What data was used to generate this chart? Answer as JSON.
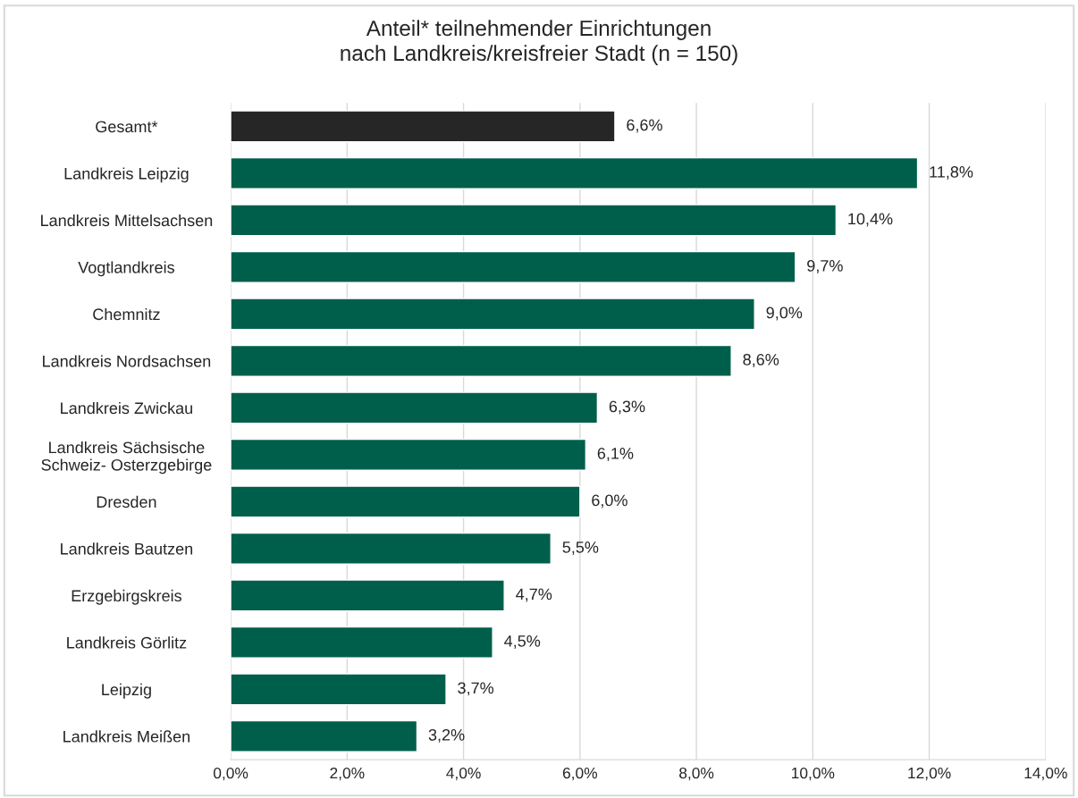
{
  "chart_data": {
    "type": "bar",
    "orientation": "horizontal",
    "title": "Anteil* teilnehmender Einrichtungen\nnach Landkreis/kreisfreier Stadt (n = 150)",
    "categories": [
      "Gesamt*",
      "Landkreis Leipzig",
      "Landkreis Mittelsachsen",
      "Vogtlandkreis",
      "Chemnitz",
      "Landkreis Nordsachsen",
      "Landkreis Zwickau",
      "Landkreis Sächsische\nSchweiz- Osterzgebirge",
      "Dresden",
      "Landkreis Bautzen",
      "Erzgebirgskreis",
      "Landkreis Görlitz",
      "Leipzig",
      "Landkreis Meißen"
    ],
    "values": [
      6.6,
      11.8,
      10.4,
      9.7,
      9.0,
      8.6,
      6.3,
      6.1,
      6.0,
      5.5,
      4.7,
      4.5,
      3.7,
      3.2
    ],
    "value_labels": [
      "6,6%",
      "11,8%",
      "10,4%",
      "9,7%",
      "9,0%",
      "8,6%",
      "6,3%",
      "6,1%",
      "6,0%",
      "5,5%",
      "4,7%",
      "4,5%",
      "3,7%",
      "3,2%"
    ],
    "colors": [
      "#262626",
      "#005f4b",
      "#005f4b",
      "#005f4b",
      "#005f4b",
      "#005f4b",
      "#005f4b",
      "#005f4b",
      "#005f4b",
      "#005f4b",
      "#005f4b",
      "#005f4b",
      "#005f4b",
      "#005f4b"
    ],
    "xlim": [
      0,
      14
    ],
    "xticks": [
      {
        "value": 0,
        "label": "0,0%"
      },
      {
        "value": 2,
        "label": "2,0%"
      },
      {
        "value": 4,
        "label": "4,0%"
      },
      {
        "value": 6,
        "label": "6,0%"
      },
      {
        "value": 8,
        "label": "8,0%"
      },
      {
        "value": 10,
        "label": "10,0%"
      },
      {
        "value": 12,
        "label": "12,0%"
      },
      {
        "value": 14,
        "label": "14,0%"
      }
    ],
    "grid": "x",
    "legend": false
  }
}
